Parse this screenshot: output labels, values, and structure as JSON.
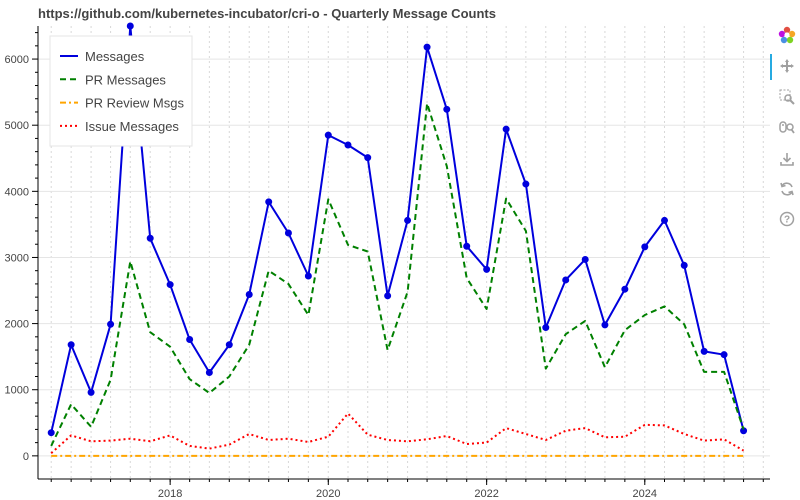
{
  "chart_data": {
    "type": "line",
    "title": "https://github.com/kubernetes-incubator/cri-o - Quarterly Message Counts",
    "xlabel": "",
    "ylabel": "",
    "x": [
      "2016-07-01",
      "2016-10-01",
      "2017-01-01",
      "2017-04-01",
      "2017-07-01",
      "2017-10-01",
      "2018-01-01",
      "2018-04-01",
      "2018-07-01",
      "2018-10-01",
      "2019-01-01",
      "2019-04-01",
      "2019-07-01",
      "2019-10-01",
      "2020-01-01",
      "2020-04-01",
      "2020-07-01",
      "2020-10-01",
      "2021-01-01",
      "2021-04-01",
      "2021-07-01",
      "2021-10-01",
      "2022-01-01",
      "2022-04-01",
      "2022-07-01",
      "2022-10-01",
      "2023-01-01",
      "2023-04-01",
      "2023-07-01",
      "2023-10-01",
      "2024-01-01",
      "2024-04-01",
      "2024-07-01",
      "2024-10-01",
      "2025-01-01",
      "2025-04-01"
    ],
    "xlim": [
      "2016-05-01",
      "2025-08-01"
    ],
    "x_ticks": [
      "2018",
      "2020",
      "2022",
      "2024"
    ],
    "ylim": [
      -350,
      6500
    ],
    "y_ticks": [
      0,
      1000,
      2000,
      3000,
      4000,
      5000,
      6000
    ],
    "grid": true,
    "legend_position": "top-left",
    "series": [
      {
        "name": "Messages",
        "color": "#0000dd",
        "dash": "solid",
        "markers": true,
        "values": [
          350,
          1680,
          960,
          1990,
          6500,
          3290,
          2590,
          1760,
          1260,
          1680,
          2440,
          3840,
          3370,
          2720,
          4850,
          4700,
          4510,
          2420,
          3560,
          6180,
          5240,
          3170,
          2820,
          4940,
          4110,
          1940,
          2660,
          2970,
          1980,
          2520,
          3160,
          3560,
          2880,
          1580,
          1530,
          380
        ]
      },
      {
        "name": "PR Messages",
        "color": "#008000",
        "dash": "dashed",
        "markers": false,
        "values": [
          150,
          780,
          440,
          1150,
          2940,
          1870,
          1650,
          1160,
          950,
          1200,
          1680,
          2800,
          2600,
          2130,
          3880,
          3190,
          3090,
          1600,
          2480,
          5330,
          4380,
          2690,
          2220,
          3890,
          3400,
          1320,
          1840,
          2040,
          1340,
          1900,
          2130,
          2260,
          1990,
          1270,
          1270,
          400
        ]
      },
      {
        "name": "PR Review Msgs",
        "color": "#ffa500",
        "dash": "dashdot",
        "markers": false,
        "values": [
          0,
          0,
          0,
          0,
          0,
          0,
          0,
          0,
          0,
          0,
          0,
          0,
          0,
          0,
          0,
          0,
          0,
          0,
          0,
          0,
          0,
          0,
          0,
          0,
          0,
          0,
          0,
          0,
          0,
          0,
          0,
          0,
          0,
          0,
          0,
          0
        ]
      },
      {
        "name": "Issue Messages",
        "color": "#ff0000",
        "dash": "dotted",
        "markers": false,
        "values": [
          40,
          310,
          220,
          230,
          260,
          220,
          310,
          150,
          110,
          170,
          330,
          240,
          260,
          210,
          290,
          640,
          320,
          240,
          220,
          250,
          300,
          180,
          200,
          420,
          330,
          240,
          380,
          420,
          280,
          290,
          470,
          460,
          330,
          230,
          250,
          80
        ]
      }
    ]
  },
  "toolbar": {
    "icons": [
      "bokeh-logo-icon",
      "pan-icon",
      "box-zoom-icon",
      "wheel-zoom-icon",
      "save-icon",
      "reset-icon",
      "help-icon"
    ]
  }
}
